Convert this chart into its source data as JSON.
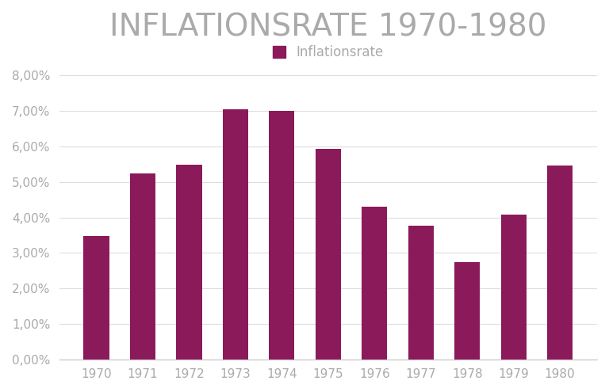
{
  "title": "INFLATIONSRATE 1970-1980",
  "legend_label": "Inflationsrate",
  "years": [
    1970,
    1971,
    1972,
    1973,
    1974,
    1975,
    1976,
    1977,
    1978,
    1979,
    1980
  ],
  "values": [
    0.0348,
    0.0524,
    0.0549,
    0.0705,
    0.07,
    0.0592,
    0.0431,
    0.0377,
    0.0275,
    0.0408,
    0.0547
  ],
  "bar_color": "#8B1A5A",
  "background_color": "#ffffff",
  "title_color": "#aaaaaa",
  "tick_color": "#aaaaaa",
  "ylim": [
    0,
    0.085
  ],
  "yticks": [
    0.0,
    0.01,
    0.02,
    0.03,
    0.04,
    0.05,
    0.06,
    0.07,
    0.08
  ],
  "ytick_labels": [
    "0,00%",
    "1,00%",
    "2,00%",
    "3,00%",
    "4,00%",
    "5,00%",
    "6,00%",
    "7,00%",
    "8,00%"
  ],
  "title_fontsize": 28,
  "tick_fontsize": 11,
  "legend_fontsize": 12
}
